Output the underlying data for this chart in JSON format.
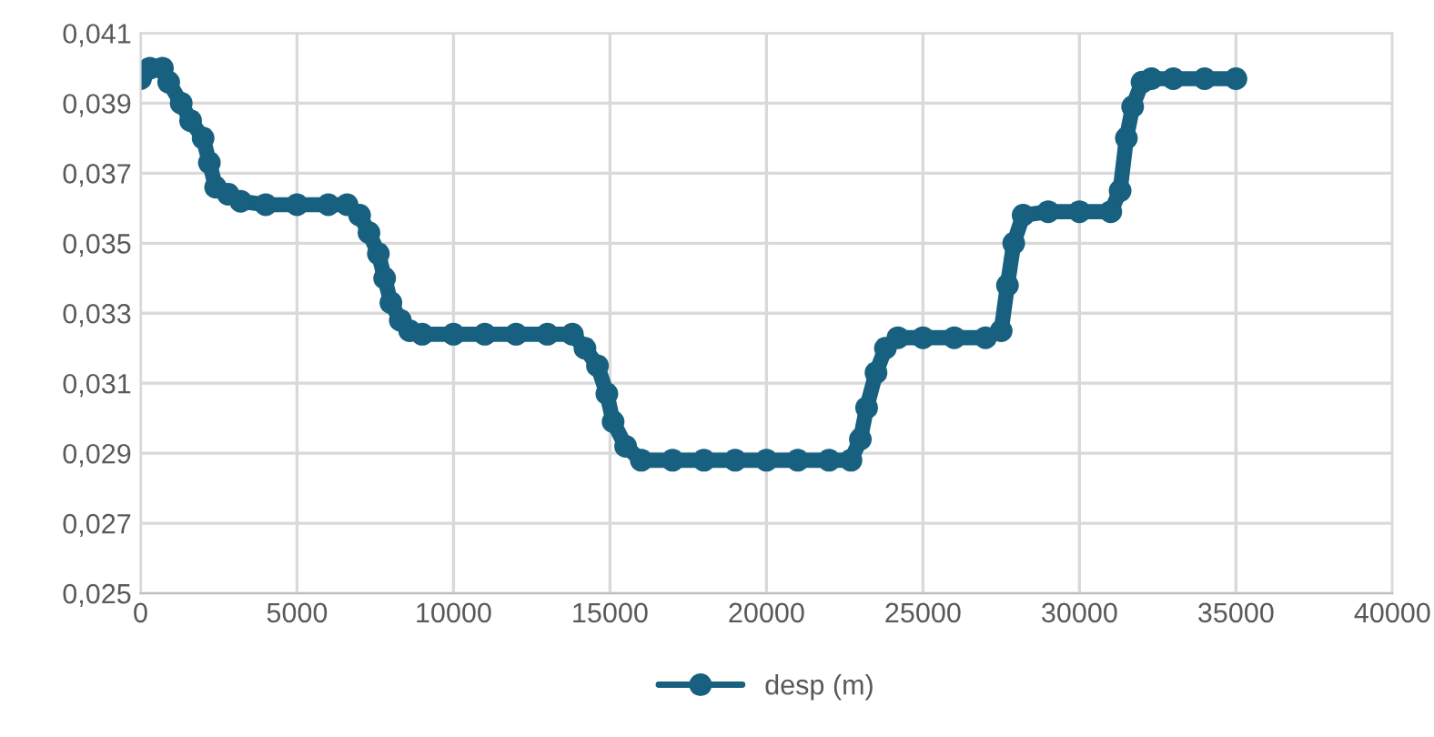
{
  "chart_data": {
    "type": "line",
    "marker": "circle",
    "line_style": "solid",
    "grid": true,
    "legend": "bottom",
    "x": [
      0,
      300,
      700,
      900,
      1300,
      1600,
      2000,
      2200,
      2400,
      2800,
      3200,
      4000,
      5000,
      6000,
      6600,
      7000,
      7300,
      7600,
      7800,
      8000,
      8300,
      8600,
      9000,
      10000,
      11000,
      12000,
      13000,
      13800,
      14200,
      14600,
      14900,
      15100,
      15500,
      16000,
      17000,
      18000,
      19000,
      20000,
      21000,
      22000,
      22700,
      23000,
      23200,
      23500,
      23800,
      24200,
      25000,
      26000,
      27000,
      27500,
      27700,
      27900,
      28200,
      29000,
      30000,
      31000,
      31300,
      31500,
      31700,
      32000,
      32300,
      33000,
      34000,
      35000
    ],
    "series": [
      {
        "name": "desp (m)",
        "color": "#17607f",
        "values": [
          0.0397,
          0.04,
          0.04,
          0.0396,
          0.039,
          0.0385,
          0.038,
          0.0373,
          0.0366,
          0.0364,
          0.0362,
          0.0361,
          0.0361,
          0.0361,
          0.0361,
          0.0358,
          0.0353,
          0.0347,
          0.034,
          0.0333,
          0.0328,
          0.0325,
          0.0324,
          0.0324,
          0.0324,
          0.0324,
          0.0324,
          0.0324,
          0.032,
          0.0315,
          0.0307,
          0.0299,
          0.0292,
          0.0288,
          0.0288,
          0.0288,
          0.0288,
          0.0288,
          0.0288,
          0.0288,
          0.0288,
          0.0294,
          0.0303,
          0.0313,
          0.032,
          0.0323,
          0.0323,
          0.0323,
          0.0323,
          0.0325,
          0.0338,
          0.035,
          0.0358,
          0.0359,
          0.0359,
          0.0359,
          0.0365,
          0.038,
          0.0389,
          0.0396,
          0.0397,
          0.0397,
          0.0397,
          0.0397
        ]
      }
    ],
    "xlim": [
      0,
      40000
    ],
    "xticks": [
      0,
      5000,
      10000,
      15000,
      20000,
      25000,
      30000,
      35000,
      40000
    ],
    "ylim": [
      0.025,
      0.041
    ],
    "yticks": [
      {
        "value": 0.025,
        "label": "0,025"
      },
      {
        "value": 0.027,
        "label": "0,027"
      },
      {
        "value": 0.029,
        "label": "0,029"
      },
      {
        "value": 0.031,
        "label": "0,031"
      },
      {
        "value": 0.033,
        "label": "0,033"
      },
      {
        "value": 0.035,
        "label": "0,035"
      },
      {
        "value": 0.037,
        "label": "0,037"
      },
      {
        "value": 0.039,
        "label": "0,039"
      },
      {
        "value": 0.041,
        "label": "0,041"
      }
    ]
  }
}
